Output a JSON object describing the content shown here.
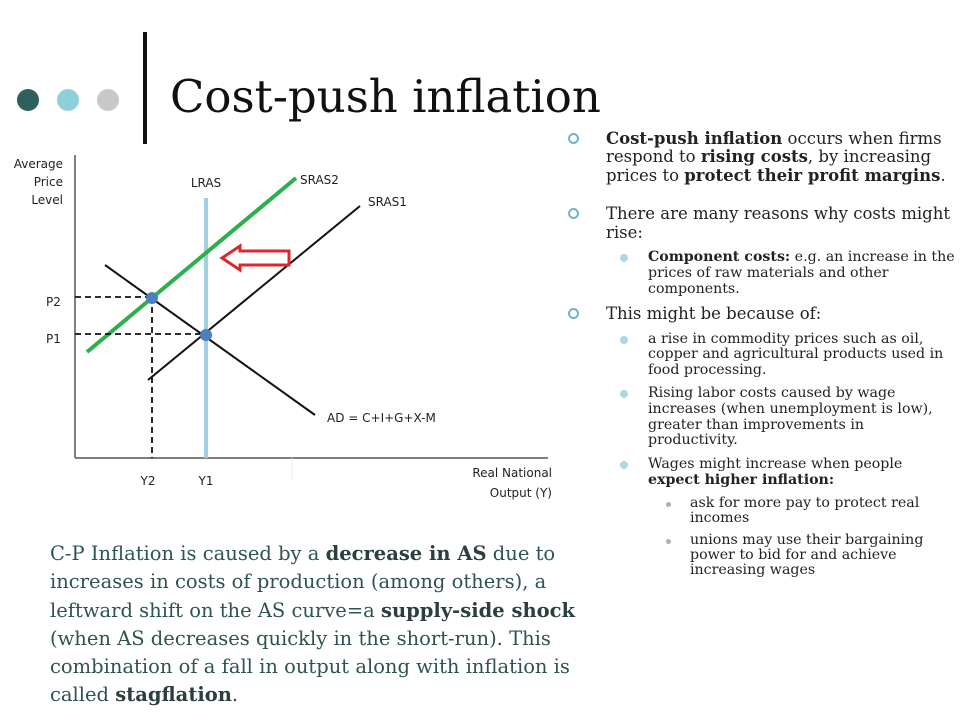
{
  "title": "Cost-push inflation",
  "colors": {
    "dot_dark": "#2e5e5e",
    "dot_light": "#8fcfd9",
    "dot_gray": "#c8c8c8",
    "sras2": "#2db04b",
    "lras": "#9fd0e0",
    "arrow": "#d9282d"
  },
  "diagram": {
    "y_axis_label": [
      "Average",
      "Price",
      "Level"
    ],
    "x_axis_label": [
      "Real National",
      "Output (Y)"
    ],
    "lras": "LRAS",
    "sras1": "SRAS1",
    "sras2": "SRAS2",
    "ad": "AD = C+I+G+X-M",
    "p2": "P2",
    "p1": "P1",
    "y2": "Y2",
    "y1": "Y1"
  },
  "bullets": {
    "b1": {
      "t1": "Cost-push inflation",
      "t2": " occurs when firms respond to ",
      "t3": "rising costs",
      "t4": ", by increasing prices to ",
      "t5": "protect their profit margins",
      "t6": "."
    },
    "b2": "There are many reasons why costs might rise:",
    "b2a": {
      "t1": "Component costs:",
      "t2": " e.g. an increase in the prices of raw materials and other components."
    },
    "b3": "This might be because of:",
    "b3a": "a rise in commodity prices such as oil, copper and agricultural products used in food processing.",
    "b3b": "Rising labor costs caused by wage increases (when unemployment is low), greater than improvements in productivity.",
    "b3c": {
      "t1": "Wages might increase when people ",
      "t2": "expect higher inflation:"
    },
    "b3c1": "ask for more pay to protect real incomes",
    "b3c2": "unions may use their bargaining power to bid for and achieve increasing wages"
  },
  "bottom": {
    "t1": "C-P Inflation is caused by a ",
    "t2": "decrease in AS",
    "t3": " due to increases in costs of production (among others), a leftward shift on the AS curve=a ",
    "t4": "supply-side shock",
    "t5": " (when AS decreases quickly in the short-run). This combination of a fall in output along with inflation is called ",
    "t6": "stagflation",
    "t7": "."
  }
}
